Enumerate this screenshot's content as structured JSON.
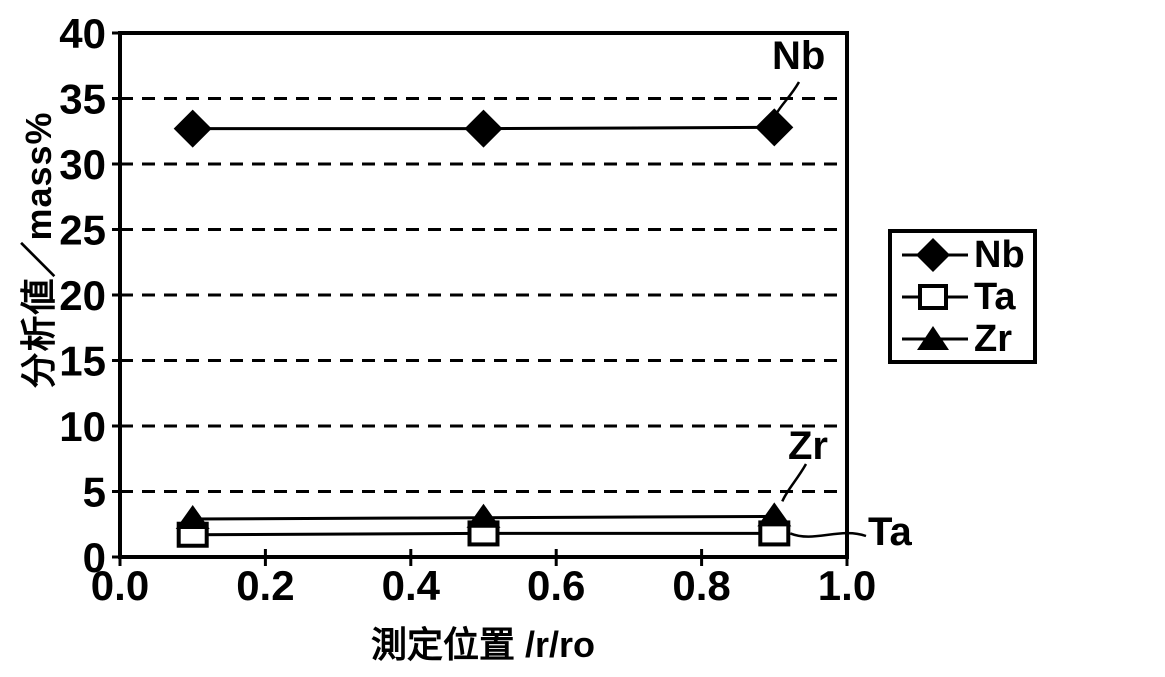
{
  "colors": {
    "ink": "#000000",
    "paper": "#ffffff"
  },
  "chart_data": {
    "type": "line",
    "title": "",
    "xlabel": "測定位置 /r/ro",
    "ylabel": "分析値／mass%",
    "x": [
      0.1,
      0.5,
      0.9
    ],
    "series": [
      {
        "name": "Nb",
        "marker": "filled-diamond",
        "values": [
          32.7,
          32.7,
          32.8
        ]
      },
      {
        "name": "Ta",
        "marker": "open-square",
        "values": [
          1.7,
          1.8,
          1.8
        ]
      },
      {
        "name": "Zr",
        "marker": "filled-triangle",
        "values": [
          2.9,
          3.0,
          3.1
        ]
      }
    ],
    "xlim": [
      0.0,
      1.0
    ],
    "ylim": [
      0,
      40
    ],
    "x_ticks": [
      "0.0",
      "0.2",
      "0.4",
      "0.6",
      "0.8",
      "1.0"
    ],
    "x_tick_values": [
      0,
      0.2,
      0.4,
      0.6,
      0.8,
      1.0
    ],
    "y_ticks": [
      "0",
      "5",
      "10",
      "15",
      "20",
      "25",
      "30",
      "35",
      "40"
    ],
    "y_tick_values": [
      0,
      5,
      10,
      15,
      20,
      25,
      30,
      35,
      40
    ],
    "grid": "horizontal-dashed",
    "legend": {
      "position": "right",
      "items": [
        "Nb",
        "Ta",
        "Zr"
      ]
    },
    "annotations": [
      {
        "text": "Nb",
        "series": "Nb"
      },
      {
        "text": "Zr",
        "series": "Zr"
      },
      {
        "text": "Ta",
        "series": "Ta"
      }
    ]
  }
}
